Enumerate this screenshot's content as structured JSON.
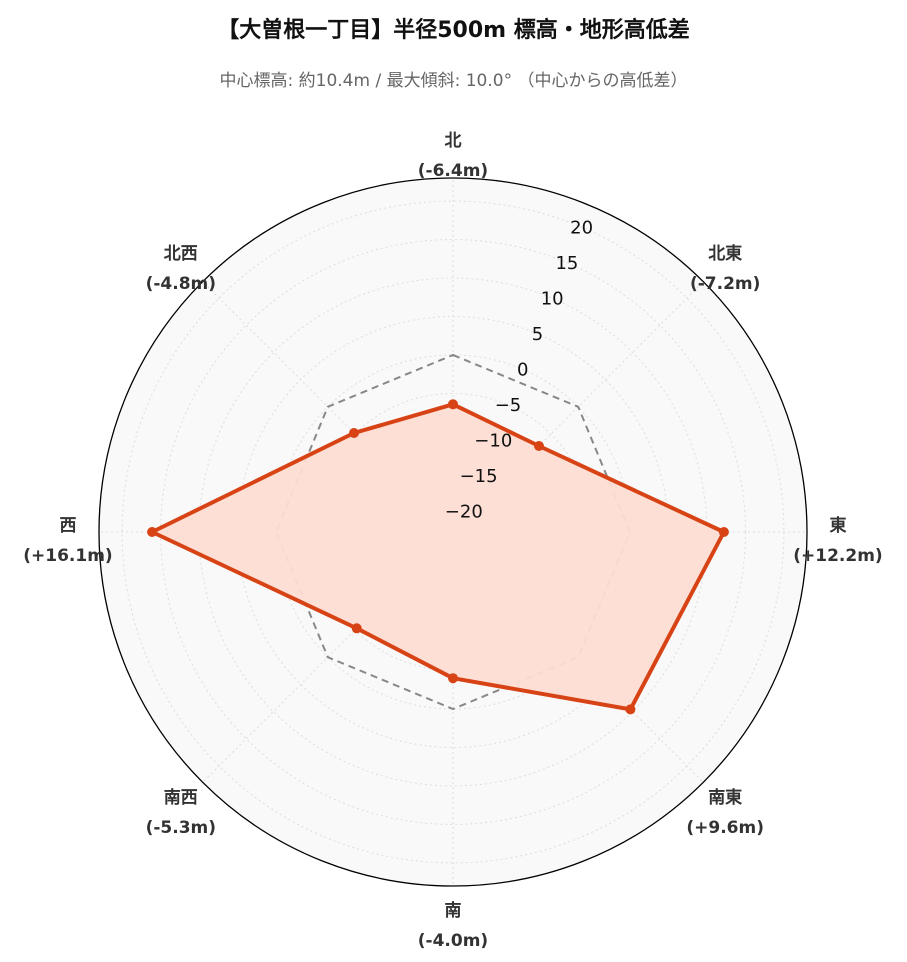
{
  "title": "【大曽根一丁目】半径500m 標高・地形高低差",
  "subtitle": "中心標高: 約10.4m / 最大傾斜: 10.0° （中心からの高低差）",
  "chart_data": {
    "type": "radar",
    "categories": [
      "北",
      "北東",
      "東",
      "南東",
      "南",
      "南西",
      "西",
      "北西"
    ],
    "category_value_labels": [
      "(-6.4m)",
      "(-7.2m)",
      "(+12.2m)",
      "(+9.6m)",
      "(-4.0m)",
      "(-5.3m)",
      "(+16.1m)",
      "(-4.8m)"
    ],
    "values": [
      -6.4,
      -7.2,
      12.2,
      9.6,
      -4.0,
      -5.3,
      16.1,
      -4.8
    ],
    "reference_value": 0,
    "rlim": [
      -23,
      23
    ],
    "radial_ticks": [
      20,
      15,
      10,
      5,
      0,
      -5,
      -10,
      -15,
      -20
    ],
    "radial_tick_labels": [
      "20",
      "15",
      "10",
      "5",
      "0",
      "−5",
      "−10",
      "−15",
      "−20"
    ],
    "grid": true,
    "colors": {
      "series_line": "#D84315",
      "series_fill": "#FDDDD3",
      "reference_line": "#888888",
      "plot_background": "#F9F9F9",
      "grid": "#DDDDDD",
      "outline": "#000000"
    }
  }
}
